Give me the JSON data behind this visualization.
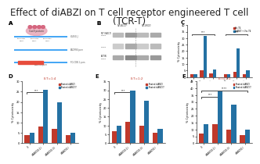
{
  "title_line1": "Effect of diABZI on T cell receptor engineered T cell",
  "title_line2": "(TCR-T)",
  "title_fontsize": 8.5,
  "panel_label_fontsize": 5,
  "bar_red": "#c0392b",
  "bar_blue": "#2471a3",
  "bg_color": "#f5f5f5",
  "panelC": {
    "label": "C",
    "legend": [
      "Vec-T4",
      "diABZI + Vec-T4"
    ],
    "group_labels": [
      "TCR-T4",
      "TCR-T8"
    ],
    "red_values": [
      2,
      5,
      3,
      2,
      4,
      2
    ],
    "blue_values": [
      2,
      32,
      6,
      2,
      22,
      5
    ],
    "xtick_labels": [
      "0",
      "diABZI",
      "Vec",
      "0",
      "diABZI",
      "Vec"
    ],
    "ylabel": "% Cytotoxicity",
    "ylim": [
      0,
      40
    ],
    "sig1": "***",
    "sig2": "***"
  },
  "panelD": {
    "label": "D",
    "title": "E:T=1:4",
    "title_color": "#c0392b",
    "legend": [
      "Treated diABZI",
      "Treated diABZI-T"
    ],
    "categories": [
      "0",
      "diABZI(0.1)",
      "diABZI(0.3)",
      "diABZI(1)"
    ],
    "red_values": [
      4,
      8,
      7,
      4
    ],
    "blue_values": [
      5,
      26,
      20,
      5
    ],
    "ylabel": "% Cytotoxicity",
    "significance": "***",
    "ylim": [
      0,
      30
    ]
  },
  "panelE": {
    "label": "E",
    "title": "E:T=1:2",
    "title_color": "#c0392b",
    "legend": [
      "Treated diABZI",
      "Treated diABZI-T"
    ],
    "categories": [
      "0",
      "diABZI(0.1)",
      "diABZI(0.3)",
      "diABZI(1)"
    ],
    "red_values": [
      7,
      12,
      10,
      6
    ],
    "blue_values": [
      10,
      30,
      24,
      8
    ],
    "ylabel": "% Cytotoxicity",
    "significance": "***",
    "ylim": [
      0,
      35
    ]
  },
  "panelF": {
    "label": "F",
    "title": "E:T=1:1",
    "title_color": "#c0392b",
    "legend": [
      "Treated diABZI",
      "Treated diABZI-T"
    ],
    "categories": [
      "0",
      "diABZI(0.1)",
      "diABZI(0.3)",
      "diABZI(1)"
    ],
    "red_values": [
      7,
      14,
      10,
      6
    ],
    "blue_values": [
      14,
      38,
      28,
      10
    ],
    "ylabel": "% Cytotoxicity",
    "significance": [
      "****",
      "***"
    ],
    "ylim": [
      0,
      45
    ]
  }
}
